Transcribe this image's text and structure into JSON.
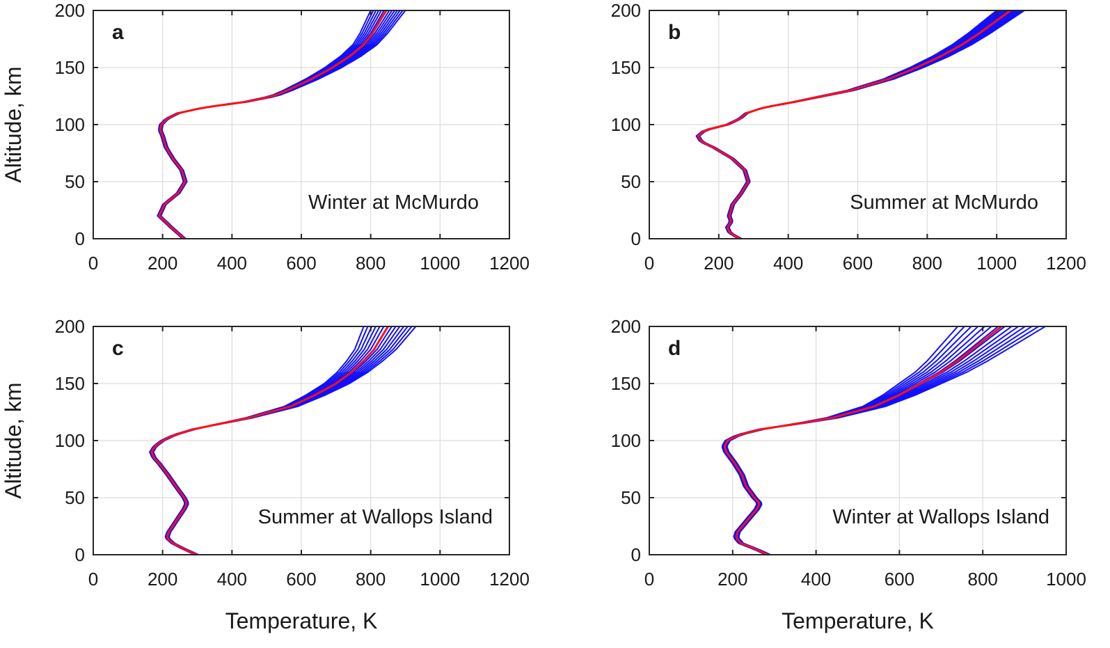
{
  "chart_data": [
    {
      "type": "line",
      "panel_label": "a",
      "annotation": "Winter at McMurdo",
      "xlabel": "",
      "ylabel": "Altitude, km",
      "xlim": [
        0,
        1200
      ],
      "ylim": [
        0,
        200
      ],
      "xticks": [
        0,
        200,
        400,
        600,
        800,
        1000,
        1200
      ],
      "yticks": [
        0,
        50,
        100,
        150,
        200
      ],
      "grid": true,
      "series_colors": {
        "ensemble": "#1010ff",
        "mean": "#ff1010"
      },
      "mean_profile": {
        "altitude": [
          0,
          10,
          20,
          30,
          40,
          50,
          60,
          70,
          80,
          90,
          95,
          100,
          105,
          110,
          115,
          120,
          125,
          130,
          140,
          150,
          160,
          170,
          180,
          190,
          200
        ],
        "temperature": [
          262,
          225,
          190,
          205,
          245,
          265,
          255,
          230,
          210,
          200,
          193,
          196,
          212,
          245,
          320,
          440,
          520,
          560,
          630,
          690,
          740,
          780,
          805,
          825,
          845
        ]
      },
      "ensemble_spread_top": [
        800,
        900
      ]
    },
    {
      "type": "line",
      "panel_label": "b",
      "annotation": "Summer at McMurdo",
      "xlabel": "",
      "ylabel": "",
      "xlim": [
        0,
        1200
      ],
      "ylim": [
        0,
        200
      ],
      "xticks": [
        0,
        200,
        400,
        600,
        800,
        1000,
        1200
      ],
      "yticks": [
        0,
        50,
        100,
        150,
        200
      ],
      "grid": true,
      "series_colors": {
        "ensemble": "#1010ff",
        "mean": "#ff1010"
      },
      "mean_profile": {
        "altitude": [
          0,
          5,
          10,
          15,
          20,
          30,
          40,
          50,
          60,
          70,
          80,
          85,
          90,
          95,
          100,
          105,
          110,
          115,
          120,
          130,
          140,
          150,
          160,
          170,
          180,
          190,
          200
        ],
        "temperature": [
          262,
          232,
          225,
          236,
          230,
          240,
          265,
          285,
          275,
          240,
          185,
          150,
          140,
          160,
          225,
          260,
          280,
          330,
          420,
          580,
          690,
          770,
          840,
          900,
          950,
          995,
          1040
        ]
      },
      "ensemble_spread_top": [
        1000,
        1080
      ]
    },
    {
      "type": "line",
      "panel_label": "c",
      "annotation": "Summer at Wallops Island",
      "xlabel": "Temperature, K",
      "ylabel": "Altitude, km",
      "xlim": [
        0,
        1200
      ],
      "ylim": [
        0,
        200
      ],
      "xticks": [
        0,
        200,
        400,
        600,
        800,
        1000,
        1200
      ],
      "yticks": [
        0,
        50,
        100,
        150,
        200
      ],
      "grid": true,
      "series_colors": {
        "ensemble": "#1010ff",
        "mean": "#ff1010"
      },
      "mean_profile": {
        "altitude": [
          0,
          5,
          10,
          15,
          20,
          30,
          40,
          45,
          50,
          60,
          70,
          80,
          85,
          90,
          95,
          100,
          105,
          110,
          115,
          120,
          130,
          140,
          150,
          160,
          170,
          180,
          190,
          200
        ],
        "temperature": [
          298,
          262,
          230,
          212,
          218,
          240,
          262,
          270,
          262,
          238,
          215,
          190,
          175,
          168,
          178,
          200,
          235,
          290,
          370,
          450,
          570,
          640,
          700,
          745,
          780,
          810,
          830,
          850
        ]
      },
      "ensemble_spread_top": [
        780,
        930
      ]
    },
    {
      "type": "line",
      "panel_label": "d",
      "annotation": "Winter at Wallops Island",
      "xlabel": "Temperature, K",
      "ylabel": "",
      "xlim": [
        0,
        1000
      ],
      "ylim": [
        0,
        200
      ],
      "xticks": [
        0,
        200,
        400,
        600,
        800,
        1000
      ],
      "yticks": [
        0,
        50,
        100,
        150,
        200
      ],
      "grid": true,
      "series_colors": {
        "ensemble": "#1010ff",
        "mean": "#ff1010"
      },
      "mean_profile": {
        "altitude": [
          0,
          5,
          10,
          15,
          20,
          30,
          40,
          45,
          50,
          60,
          70,
          80,
          90,
          95,
          100,
          105,
          110,
          115,
          120,
          130,
          140,
          150,
          160,
          170,
          180,
          190,
          200
        ],
        "temperature": [
          285,
          255,
          220,
          208,
          212,
          235,
          258,
          265,
          252,
          232,
          222,
          205,
          185,
          180,
          188,
          215,
          270,
          360,
          440,
          540,
          600,
          650,
          700,
          740,
          775,
          810,
          845
        ]
      },
      "ensemble_spread_top": [
        740,
        950
      ]
    }
  ]
}
